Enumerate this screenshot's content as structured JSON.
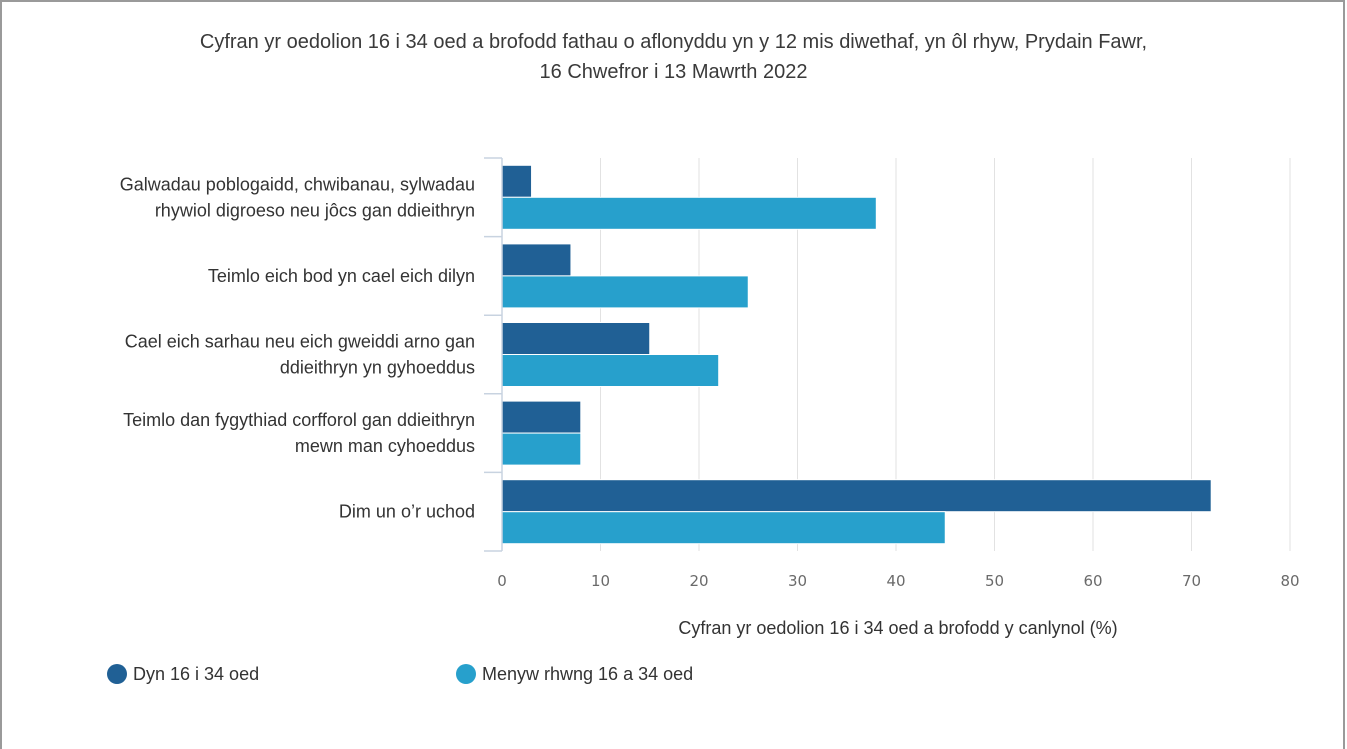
{
  "chart_data": {
    "type": "bar",
    "orientation": "horizontal",
    "title_line1": "Cyfran yr oedolion 16 i 34 oed a brofodd fathau o aflonyddu yn y 12 mis diwethaf, yn ôl rhyw, Prydain Fawr,",
    "title_line2": "16 Chwefror i 13 Mawrth 2022",
    "categories": [
      [
        "Galwadau poblogaidd, chwibanau, sylwadau",
        "rhywiol digroeso neu jôcs gan ddieithryn"
      ],
      [
        "Teimlo eich bod yn cael eich dilyn"
      ],
      [
        "Cael eich sarhau neu eich gweiddi arno gan",
        "ddieithryn yn gyhoeddus"
      ],
      [
        "Teimlo dan fygythiad corfforol gan ddieithryn",
        "mewn man cyhoeddus"
      ],
      [
        "Dim un o’r uchod"
      ]
    ],
    "series": [
      {
        "name": "Dyn 16 i 34 oed",
        "color": "#206095",
        "values": [
          3,
          7,
          15,
          8,
          72
        ]
      },
      {
        "name": "Menyw rhwng 16 a 34 oed",
        "color": "#27a0cc",
        "values": [
          38,
          25,
          22,
          8,
          45
        ]
      }
    ],
    "xlabel": "Cyfran yr oedolion 16 i 34 oed a brofodd y canlynol (%)",
    "xlim": [
      0,
      80
    ],
    "xticks": [
      "0",
      "10",
      "20",
      "30",
      "40",
      "50",
      "60",
      "70",
      "80"
    ],
    "grid": true,
    "legend_position": "bottom-left"
  }
}
